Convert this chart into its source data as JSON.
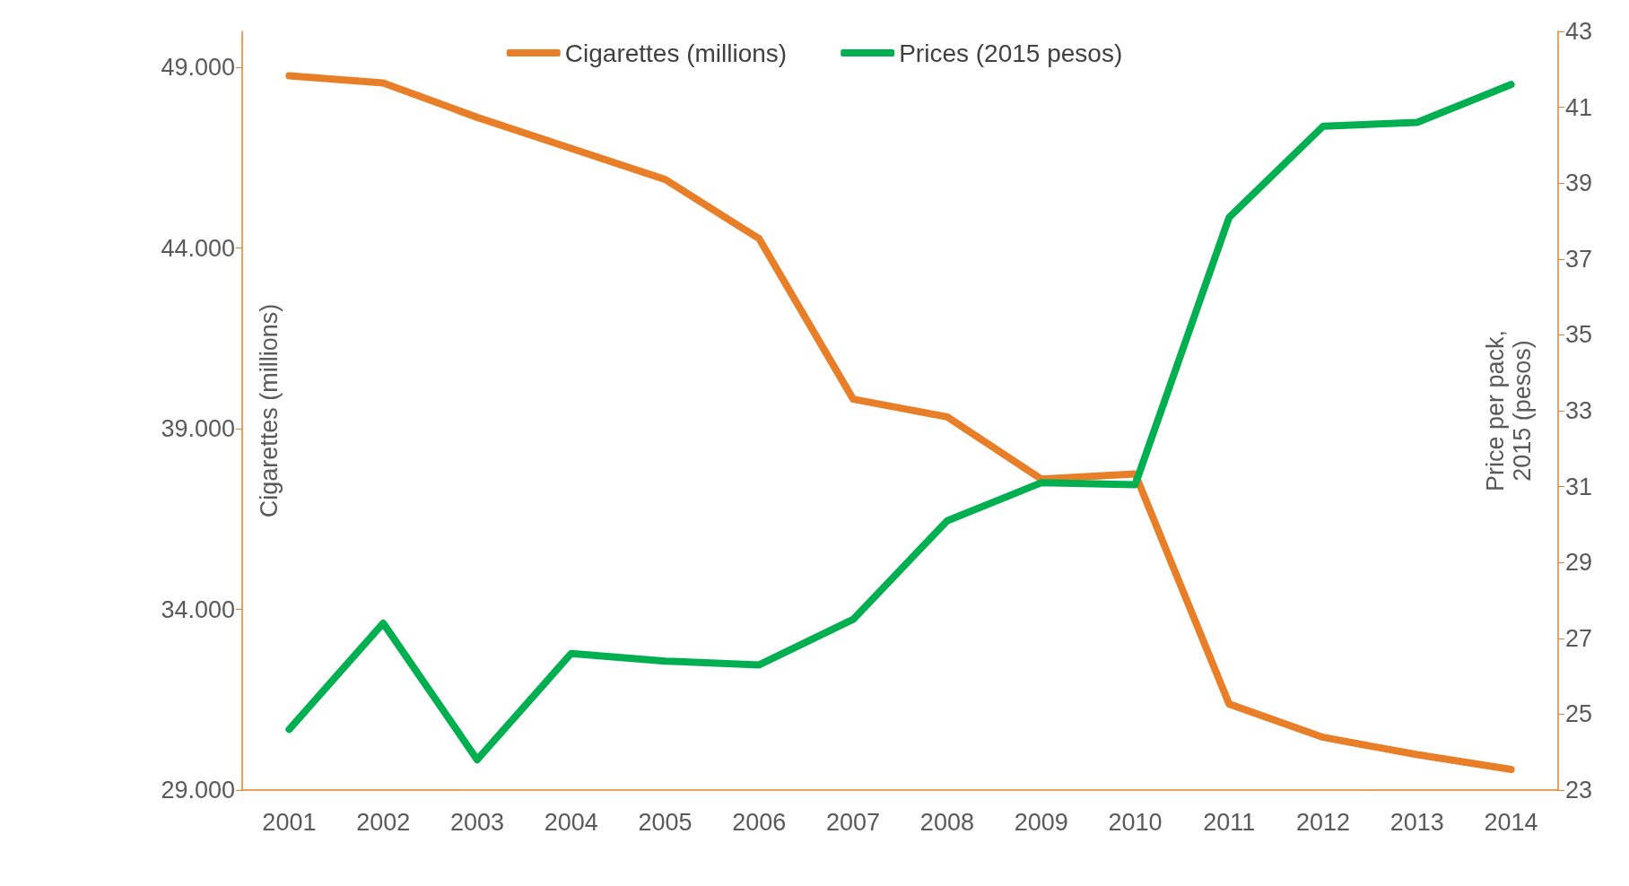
{
  "chart_data": {
    "type": "line",
    "categories": [
      "2001",
      "2002",
      "2003",
      "2004",
      "2005",
      "2006",
      "2007",
      "2008",
      "2009",
      "2010",
      "2011",
      "2012",
      "2013",
      "2014"
    ],
    "series": [
      {
        "name": "Cigarettes (millions)",
        "color": "#e87e28",
        "values": [
          48770,
          48570,
          47620,
          46760,
          45900,
          44260,
          39820,
          39330,
          37610,
          37750,
          31380,
          30460,
          29980,
          29570
        ]
      },
      {
        "name": "Prices (2015 pesos)",
        "color": "#00b050",
        "axis": "y2",
        "values": [
          24.6,
          27.4,
          23.8,
          26.6,
          26.4,
          26.3,
          27.5,
          30.1,
          31.1,
          31.05,
          38.1,
          40.5,
          40.6,
          41.6
        ]
      }
    ],
    "ylabel": "Cigarettes (millions)",
    "y2label": "Price per pack,\n2015 (pesos)",
    "ylim": [
      29000,
      50000
    ],
    "yticks": [
      {
        "value": 29000,
        "label": "29.000"
      },
      {
        "value": 34000,
        "label": "34.000"
      },
      {
        "value": 39000,
        "label": "39.000"
      },
      {
        "value": 44000,
        "label": "44.000"
      },
      {
        "value": 49000,
        "label": "49.000"
      }
    ],
    "y2lim": [
      23,
      43
    ],
    "y2ticks": [
      23,
      25,
      27,
      29,
      31,
      33,
      35,
      37,
      39,
      41,
      43
    ],
    "grid": false,
    "legend": "top",
    "marker": "none",
    "line_style": "solid"
  }
}
